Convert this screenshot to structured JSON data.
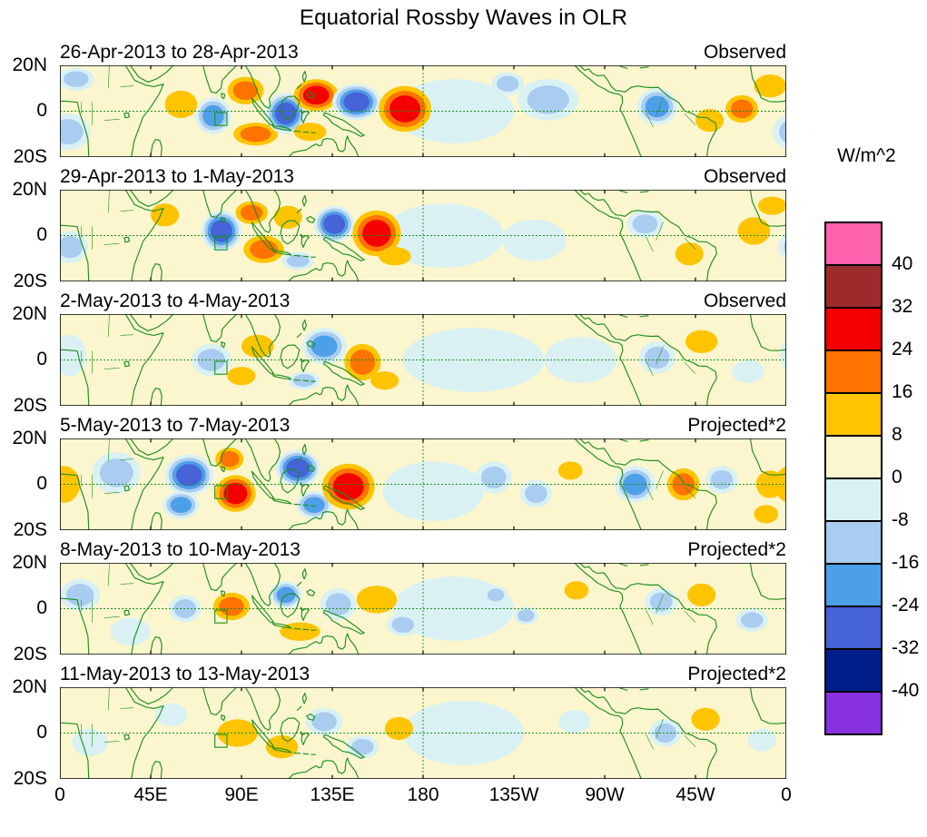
{
  "chart_data": {
    "type": "filled_contour_map_panels",
    "title": "Equatorial Rossby Waves in OLR",
    "units": "W/m^2",
    "contour_interval_wm2": 8,
    "levels_wm2": [
      -40,
      -32,
      -24,
      -16,
      -8,
      0,
      8,
      16,
      24,
      32,
      40
    ],
    "map_outline_color": "#1e8f1e",
    "equator_dashed_line": true,
    "dateline_dashed_line": true,
    "x_axis": {
      "tick_labels": [
        "0",
        "45E",
        "90E",
        "135E",
        "180",
        "135W",
        "90W",
        "45W",
        "0"
      ],
      "range_deg_east": [
        0,
        360
      ]
    },
    "y_axis": {
      "tick_labels": [
        "20N",
        "0",
        "20S"
      ],
      "range_deg_lat": [
        -20,
        20
      ]
    },
    "colorbar": {
      "units_label": "W/m^2",
      "tick_labels": [
        "40",
        "32",
        "24",
        "16",
        "8",
        "0",
        "-8",
        "-16",
        "-24",
        "-32",
        "-40"
      ],
      "colors_top_to_bottom": [
        "#ff63ae",
        "#9e2b2b",
        "#f40000",
        "#ff7300",
        "#ffc400",
        "#fbf6ce",
        "#d9f1f3",
        "#a9ccf0",
        "#4d9fe8",
        "#4663d8",
        "#001f8b",
        "#8731e0"
      ]
    },
    "roi_box_deg": {
      "lon_min": 76.8,
      "lon_max": 82.8,
      "lat_min": -6.2,
      "lat_max": -0.6
    },
    "features_format": "[lon_deg_east, lat_deg_north, rx_deg, ry_deg, peak_anomaly_wm2]",
    "panels": [
      {
        "date_range": "26-Apr-2013 to 28-Apr-2013",
        "type_label": "Observed",
        "features": [
          [
            195,
            0,
            30,
            14,
            -6
          ],
          [
            242,
            5,
            15,
            9,
            -9
          ],
          [
            4,
            -9,
            11,
            8,
            -13
          ],
          [
            8,
            14,
            9,
            5,
            -9
          ],
          [
            60,
            3,
            8,
            6,
            12
          ],
          [
            76,
            -2,
            9,
            8,
            -22
          ],
          [
            92,
            9,
            9,
            6,
            20
          ],
          [
            97,
            -10,
            11,
            5,
            16
          ],
          [
            112,
            -1,
            10,
            9,
            -27
          ],
          [
            127,
            7,
            11,
            7,
            26
          ],
          [
            124,
            -9,
            8,
            4,
            14
          ],
          [
            147,
            4,
            12,
            8,
            -30
          ],
          [
            171,
            1,
            13,
            10,
            30
          ],
          [
            222,
            12,
            8,
            5,
            -10
          ],
          [
            296,
            2,
            10,
            8,
            -22
          ],
          [
            322,
            -4,
            7,
            5,
            10
          ],
          [
            338,
            1,
            8,
            6,
            18
          ],
          [
            352,
            11,
            8,
            5,
            10
          ]
        ]
      },
      {
        "date_range": "29-Apr-2013 to 1-May-2013",
        "type_label": "Observed",
        "features": [
          [
            190,
            0,
            30,
            14,
            -6
          ],
          [
            235,
            -2,
            16,
            9,
            -6
          ],
          [
            5,
            -5,
            9,
            7,
            -9
          ],
          [
            52,
            9,
            7,
            5,
            11
          ],
          [
            80,
            2,
            10,
            9,
            -27
          ],
          [
            95,
            10,
            8,
            5,
            18
          ],
          [
            101,
            -6,
            10,
            6,
            22
          ],
          [
            113,
            8,
            7,
            5,
            13
          ],
          [
            118,
            -11,
            8,
            4,
            -10
          ],
          [
            136,
            5,
            10,
            8,
            -30
          ],
          [
            157,
            1,
            12,
            10,
            27
          ],
          [
            166,
            -9,
            8,
            4,
            14
          ],
          [
            290,
            5,
            9,
            6,
            -14
          ],
          [
            312,
            -8,
            7,
            5,
            11
          ],
          [
            344,
            2,
            8,
            6,
            14
          ],
          [
            353,
            13,
            7,
            4,
            9
          ]
        ]
      },
      {
        "date_range": "2-May-2013 to 4-May-2013",
        "type_label": "Observed",
        "features": [
          [
            205,
            0,
            35,
            14,
            -5
          ],
          [
            258,
            0,
            18,
            10,
            -5
          ],
          [
            5,
            2,
            8,
            9,
            -7
          ],
          [
            75,
            0,
            10,
            7,
            -15
          ],
          [
            90,
            -7,
            7,
            4,
            12
          ],
          [
            98,
            6,
            8,
            5,
            15
          ],
          [
            121,
            -9,
            8,
            4,
            -11
          ],
          [
            131,
            6,
            11,
            8,
            -22
          ],
          [
            150,
            -1,
            9,
            8,
            19
          ],
          [
            161,
            -9,
            7,
            4,
            12
          ],
          [
            296,
            1,
            9,
            7,
            -12
          ],
          [
            318,
            8,
            8,
            5,
            11
          ],
          [
            341,
            -5,
            8,
            5,
            -7
          ]
        ]
      },
      {
        "date_range": "5-May-2013 to 7-May-2013",
        "type_label": "Projected*2",
        "features": [
          [
            185,
            -3,
            25,
            13,
            -6
          ],
          [
            2,
            0,
            8,
            8,
            11
          ],
          [
            28,
            5,
            12,
            9,
            -9
          ],
          [
            64,
            4,
            12,
            9,
            -26
          ],
          [
            60,
            -9,
            9,
            6,
            -17
          ],
          [
            87,
            -4,
            10,
            8,
            29
          ],
          [
            84,
            11,
            7,
            5,
            17
          ],
          [
            118,
            7,
            11,
            8,
            -31
          ],
          [
            126,
            -9,
            9,
            6,
            -22
          ],
          [
            143,
            -1,
            13,
            10,
            30
          ],
          [
            215,
            3,
            9,
            7,
            -15
          ],
          [
            236,
            -4,
            8,
            6,
            -12
          ],
          [
            253,
            6,
            6,
            4,
            9
          ],
          [
            285,
            0,
            10,
            8,
            -19
          ],
          [
            309,
            0,
            8,
            7,
            22
          ],
          [
            328,
            2,
            8,
            6,
            -13
          ],
          [
            352,
            0,
            7,
            6,
            11
          ],
          [
            350,
            -13,
            6,
            4,
            9
          ]
        ]
      },
      {
        "date_range": "8-May-2013 to 10-May-2013",
        "type_label": "Projected*2",
        "features": [
          [
            195,
            0,
            30,
            14,
            -5
          ],
          [
            10,
            6,
            10,
            7,
            -8
          ],
          [
            35,
            -10,
            10,
            6,
            -6
          ],
          [
            62,
            0,
            8,
            6,
            -10
          ],
          [
            85,
            1,
            9,
            6,
            21
          ],
          [
            112,
            6,
            8,
            6,
            -19
          ],
          [
            119,
            -10,
            10,
            4,
            12
          ],
          [
            138,
            2,
            9,
            7,
            -15
          ],
          [
            157,
            4,
            10,
            6,
            13
          ],
          [
            170,
            -7,
            8,
            5,
            -8
          ],
          [
            216,
            6,
            6,
            4,
            -11
          ],
          [
            231,
            -3,
            6,
            4,
            -11
          ],
          [
            256,
            8,
            6,
            4,
            9
          ],
          [
            298,
            3,
            8,
            6,
            -15
          ],
          [
            318,
            6,
            7,
            5,
            12
          ],
          [
            343,
            -5,
            8,
            5,
            -8
          ]
        ]
      },
      {
        "date_range": "11-May-2013 to 13-May-2013",
        "type_label": "Projected*2",
        "features": [
          [
            200,
            0,
            30,
            14,
            -5
          ],
          [
            15,
            -4,
            9,
            6,
            -7
          ],
          [
            55,
            8,
            8,
            5,
            -6
          ],
          [
            88,
            0,
            10,
            6,
            13
          ],
          [
            110,
            -6,
            8,
            5,
            9
          ],
          [
            131,
            5,
            9,
            6,
            -11
          ],
          [
            150,
            -6,
            8,
            5,
            -8
          ],
          [
            168,
            2,
            7,
            5,
            8
          ],
          [
            255,
            5,
            8,
            5,
            -7
          ],
          [
            300,
            0,
            8,
            6,
            -11
          ],
          [
            320,
            6,
            7,
            5,
            9
          ],
          [
            348,
            -3,
            7,
            5,
            -7
          ]
        ]
      }
    ]
  }
}
